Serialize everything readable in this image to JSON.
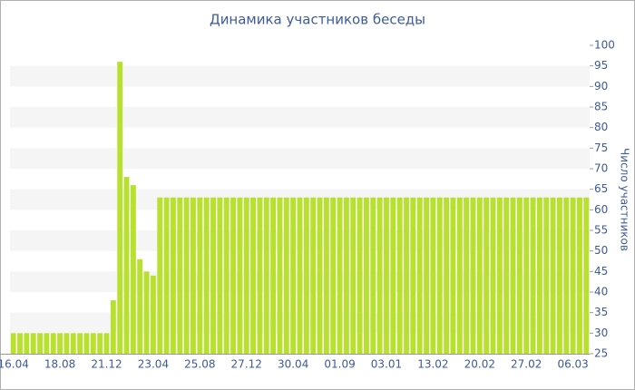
{
  "chart_data": {
    "type": "bar",
    "title": "Динамика участников беседы",
    "y_label": "Число участников",
    "categories": [
      "16.04",
      null,
      null,
      null,
      null,
      null,
      null,
      "18.08",
      null,
      null,
      null,
      null,
      null,
      null,
      "21.12",
      null,
      null,
      null,
      null,
      null,
      null,
      "23.04",
      null,
      null,
      null,
      null,
      null,
      null,
      "25.08",
      null,
      null,
      null,
      null,
      null,
      null,
      "27.12",
      null,
      null,
      null,
      null,
      null,
      null,
      "30.04",
      null,
      null,
      null,
      null,
      null,
      null,
      "01.09",
      null,
      null,
      null,
      null,
      null,
      null,
      "03.01",
      null,
      null,
      null,
      null,
      null,
      null,
      "13.02",
      null,
      null,
      null,
      null,
      null,
      null,
      "20.02",
      null,
      null,
      null,
      null,
      null,
      null,
      "27.02",
      null,
      null,
      null,
      null,
      null,
      null,
      "06.03",
      null,
      null
    ],
    "values": [
      30,
      30,
      30,
      30,
      30,
      30,
      30,
      30,
      30,
      30,
      30,
      30,
      30,
      30,
      30,
      38,
      96,
      68,
      66,
      48,
      45,
      44,
      63,
      63,
      63,
      63,
      63,
      63,
      63,
      63,
      63,
      63,
      63,
      63,
      63,
      63,
      63,
      63,
      63,
      63,
      63,
      63,
      63,
      63,
      63,
      63,
      63,
      63,
      63,
      63,
      63,
      63,
      63,
      63,
      63,
      63,
      63,
      63,
      63,
      63,
      63,
      63,
      63,
      63,
      63,
      63,
      63,
      63,
      63,
      63,
      63,
      63,
      63,
      63,
      63,
      63,
      63,
      63,
      63,
      63,
      63,
      63,
      63,
      63,
      63,
      63,
      63
    ],
    "color": "#b8e02e",
    "ylim": [
      25,
      100
    ],
    "yticks": [
      25,
      30,
      35,
      40,
      45,
      50,
      55,
      60,
      65,
      70,
      75,
      80,
      85,
      90,
      95,
      100
    ],
    "grid": true
  }
}
